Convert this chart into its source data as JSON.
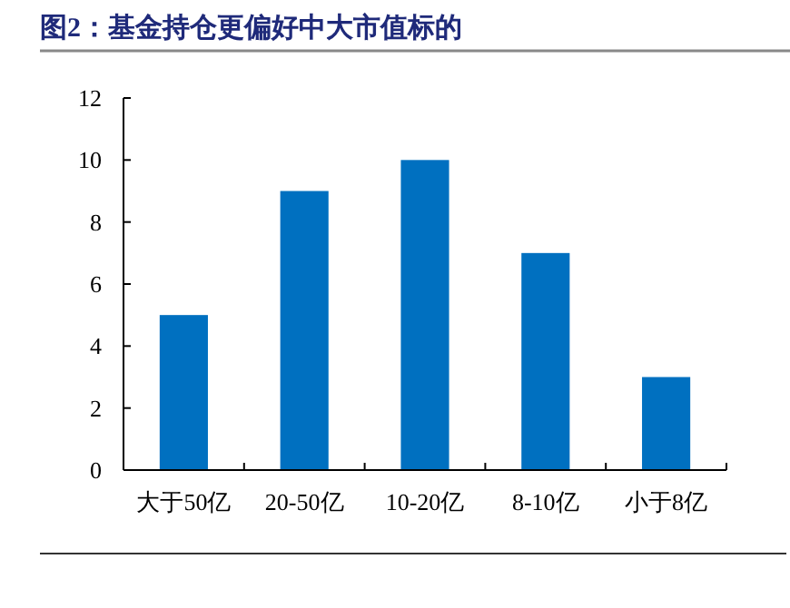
{
  "chart_data": {
    "type": "bar",
    "title": "图2：基金持仓更偏好中大市值标的",
    "categories": [
      "大于50亿",
      "20-50亿",
      "10-20亿",
      "8-10亿",
      "小于8亿"
    ],
    "values": [
      5,
      9,
      10,
      7,
      3
    ],
    "color": "#0070c0",
    "ylim": [
      0,
      12
    ],
    "yticks": [
      0,
      2,
      4,
      6,
      8,
      10,
      12
    ],
    "grid": false
  }
}
